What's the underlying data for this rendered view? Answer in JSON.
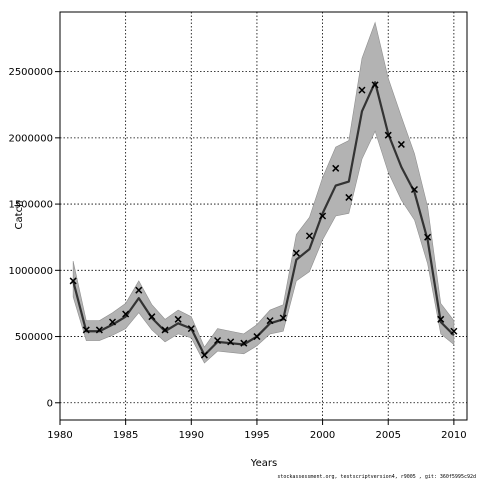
{
  "chart_data": {
    "type": "line",
    "xlabel": "Years",
    "ylabel": "Catch",
    "xlim": [
      1980,
      2011
    ],
    "ylim": [
      -130000,
      2950000
    ],
    "x_ticks": [
      1980,
      1985,
      1990,
      1995,
      2000,
      2005,
      2010
    ],
    "y_ticks": [
      0,
      500000,
      1000000,
      1500000,
      2000000,
      2500000
    ],
    "grid": true,
    "grid_style": "dotted",
    "colors": {
      "line": "#333333",
      "band": "#b3b3b3",
      "band_edge": "#8f8f8f",
      "marker": "#000000",
      "axis": "#000000"
    },
    "series": [
      {
        "kind": "line",
        "x": [
          1981,
          1982,
          1983,
          1984,
          1985,
          1986,
          1987,
          1988,
          1989,
          1990,
          1991,
          1992,
          1993,
          1994,
          1995,
          1996,
          1997,
          1998,
          1999,
          2000,
          2001,
          2002,
          2003,
          2004,
          2005,
          2006,
          2007,
          2008,
          2009,
          2010
        ],
        "y": [
          920000,
          540000,
          540000,
          590000,
          650000,
          790000,
          640000,
          540000,
          600000,
          560000,
          360000,
          460000,
          450000,
          440000,
          500000,
          600000,
          630000,
          1080000,
          1160000,
          1430000,
          1640000,
          1670000,
          2200000,
          2420000,
          2030000,
          1780000,
          1590000,
          1230000,
          610000,
          510000
        ]
      },
      {
        "kind": "band",
        "x": [
          1981,
          1982,
          1983,
          1984,
          1985,
          1986,
          1987,
          1988,
          1989,
          1990,
          1991,
          1992,
          1993,
          1994,
          1995,
          1996,
          1997,
          1998,
          1999,
          2000,
          2001,
          2002,
          2003,
          2004,
          2005,
          2006,
          2007,
          2008,
          2009,
          2010
        ],
        "upper": [
          1070000,
          620000,
          620000,
          680000,
          750000,
          920000,
          740000,
          630000,
          700000,
          650000,
          420000,
          560000,
          540000,
          520000,
          590000,
          700000,
          740000,
          1270000,
          1400000,
          1700000,
          1930000,
          1980000,
          2600000,
          2870000,
          2450000,
          2160000,
          1880000,
          1480000,
          750000,
          620000
        ],
        "lower": [
          800000,
          470000,
          470000,
          510000,
          560000,
          680000,
          550000,
          460000,
          520000,
          490000,
          300000,
          390000,
          380000,
          370000,
          430000,
          520000,
          540000,
          920000,
          990000,
          1230000,
          1410000,
          1430000,
          1840000,
          2050000,
          1740000,
          1530000,
          1380000,
          1050000,
          520000,
          440000
        ]
      },
      {
        "kind": "points",
        "marker": "x",
        "x": [
          1981,
          1982,
          1983,
          1984,
          1985,
          1986,
          1987,
          1988,
          1989,
          1990,
          1991,
          1992,
          1993,
          1994,
          1995,
          1996,
          1997,
          1998,
          1999,
          2000,
          2001,
          2002,
          2003,
          2004,
          2005,
          2006,
          2007,
          2008,
          2009,
          2010
        ],
        "y": [
          920000,
          550000,
          550000,
          610000,
          670000,
          850000,
          650000,
          550000,
          630000,
          560000,
          360000,
          470000,
          460000,
          450000,
          500000,
          620000,
          640000,
          1130000,
          1260000,
          1410000,
          1770000,
          1550000,
          2360000,
          2400000,
          2020000,
          1950000,
          1610000,
          1250000,
          630000,
          540000
        ]
      }
    ],
    "footer": "stockassessment.org, testscriptversion4, r9005 , git: 360f5995c92d"
  }
}
